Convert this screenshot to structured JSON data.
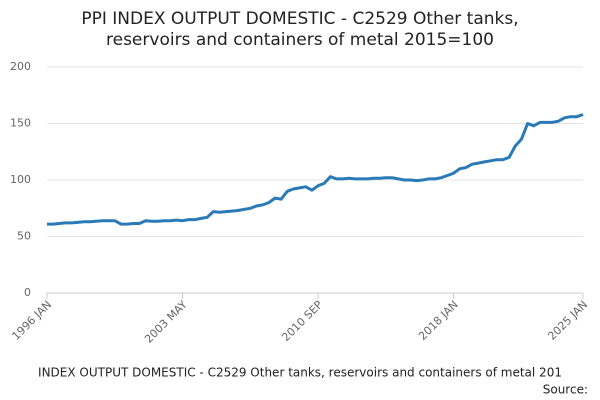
{
  "chart_data": {
    "type": "line",
    "title_lines": [
      "PPI INDEX OUTPUT DOMESTIC - C2529 Other tanks,",
      "reservoirs and containers of metal 2015=100"
    ],
    "caption": "INDEX OUTPUT DOMESTIC - C2529 Other tanks, reservoirs and containers of metal 201",
    "source": "Source:",
    "categories": [
      "1996 JAN",
      null,
      null,
      null,
      null,
      null,
      null,
      null,
      null,
      null,
      null,
      null,
      null,
      null,
      null,
      null,
      null,
      null,
      null,
      null,
      null,
      null,
      "2003 MAY",
      null,
      null,
      null,
      null,
      null,
      null,
      null,
      null,
      null,
      null,
      null,
      null,
      null,
      null,
      null,
      null,
      null,
      null,
      null,
      null,
      null,
      "2010 SEP",
      null,
      null,
      null,
      null,
      null,
      null,
      null,
      null,
      null,
      null,
      null,
      null,
      null,
      null,
      null,
      null,
      null,
      null,
      null,
      null,
      null,
      "2018 JAN",
      null,
      null,
      null,
      null,
      null,
      null,
      null,
      null,
      null,
      null,
      null,
      null,
      null,
      null,
      null,
      null,
      null,
      null,
      null,
      null,
      "2025 JAN"
    ],
    "series": [
      {
        "color": "#2a7ab8",
        "values": [
          61,
          61,
          61.5,
          62,
          62,
          62.5,
          63,
          63,
          63.5,
          64,
          64,
          64,
          61,
          61,
          61.5,
          61.5,
          64,
          63.5,
          63.5,
          64,
          64,
          64.5,
          64,
          65,
          65,
          66,
          67,
          72,
          71.5,
          72,
          72.5,
          73,
          74,
          75,
          77,
          78,
          80,
          84,
          83,
          90,
          92,
          93,
          94,
          91,
          95,
          97,
          103,
          101,
          101,
          101.5,
          101,
          101,
          101,
          101.5,
          101.5,
          102,
          102,
          101,
          100,
          100,
          99.5,
          100,
          101,
          101,
          102,
          104,
          106,
          110,
          111,
          114,
          115,
          116,
          117,
          118,
          118,
          120,
          130,
          136,
          150,
          148,
          151,
          151,
          151,
          152,
          155,
          156,
          156,
          158
        ]
      }
    ],
    "ylim": [
      0,
      200
    ],
    "yticks": [
      0,
      50,
      100,
      150,
      200
    ],
    "grid": true
  }
}
